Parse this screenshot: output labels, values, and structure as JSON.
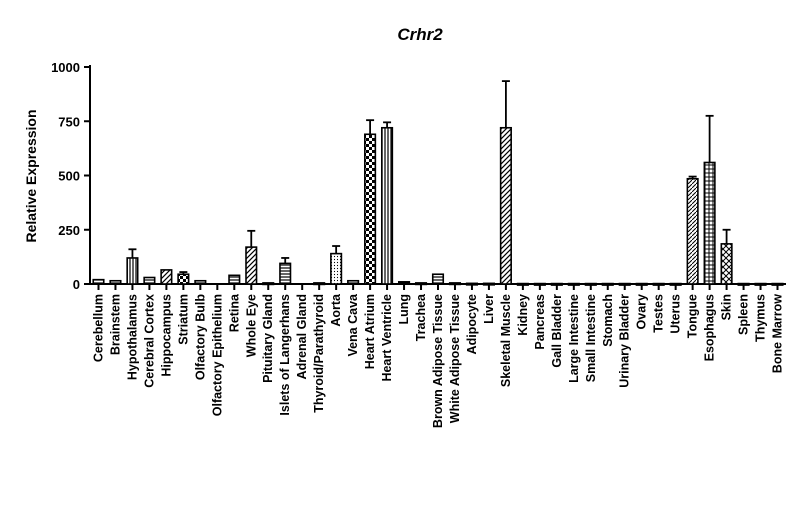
{
  "chart_data": {
    "type": "bar",
    "title": "Crhr2",
    "ylabel": "Relative Expression",
    "ylim": [
      0,
      1000
    ],
    "yticks": [
      0,
      250,
      500,
      750,
      1000
    ],
    "categories": [
      "Cerebellum",
      "Brainstem",
      "Hypothalamus",
      "Cerebral Cortex",
      "Hippocampus",
      "Striatum",
      "Olfactory Bulb",
      "Olfactory Epithelium",
      "Retina",
      "Whole Eye",
      "Pituitary Gland",
      "Islets of Langerhans",
      "Adrenal Gland",
      "Thyroid/Parathyroid",
      "Aorta",
      "Vena Cava",
      "Heart Atrium",
      "Heart Ventricle",
      "Lung",
      "Trachea",
      "Brown Adipose Tissue",
      "White Adipose Tissue",
      "Adipocyte",
      "Liver",
      "Skeletal Muscle",
      "Kidney",
      "Pancreas",
      "Gall Bladder",
      "Large Intestine",
      "Small Intestine",
      "Stomach",
      "Urinary Bladder",
      "Ovary",
      "Testes",
      "Uterus",
      "Tongue",
      "Esophagus",
      "Skin",
      "Spleen",
      "Thymus",
      "Bone Marrow"
    ],
    "values": [
      20,
      15,
      120,
      30,
      65,
      45,
      15,
      0,
      40,
      170,
      5,
      95,
      0,
      5,
      140,
      15,
      690,
      720,
      10,
      5,
      45,
      5,
      3,
      3,
      720,
      2,
      2,
      2,
      2,
      2,
      2,
      2,
      2,
      2,
      2,
      485,
      560,
      185,
      2,
      2,
      2
    ],
    "errors": [
      0,
      0,
      40,
      0,
      0,
      10,
      0,
      0,
      0,
      75,
      0,
      25,
      0,
      0,
      35,
      0,
      65,
      25,
      0,
      0,
      0,
      0,
      0,
      0,
      215,
      0,
      0,
      0,
      0,
      0,
      0,
      0,
      0,
      0,
      0,
      10,
      215,
      65,
      0,
      0,
      0
    ],
    "patterns": [
      "hstripe",
      "hstripe",
      "vstripe",
      "hstripe",
      "diag",
      "checker",
      "hstripe",
      "none",
      "hstripe",
      "diag",
      "none",
      "hstripe",
      "none",
      "hstripe",
      "dots",
      "hstripe",
      "checker",
      "vstripe",
      "hstripe",
      "none",
      "hstripe",
      "none",
      "none",
      "none",
      "diag",
      "none",
      "none",
      "none",
      "none",
      "none",
      "none",
      "none",
      "none",
      "none",
      "none",
      "diag2",
      "grid",
      "cross",
      "none",
      "none",
      "none"
    ]
  }
}
